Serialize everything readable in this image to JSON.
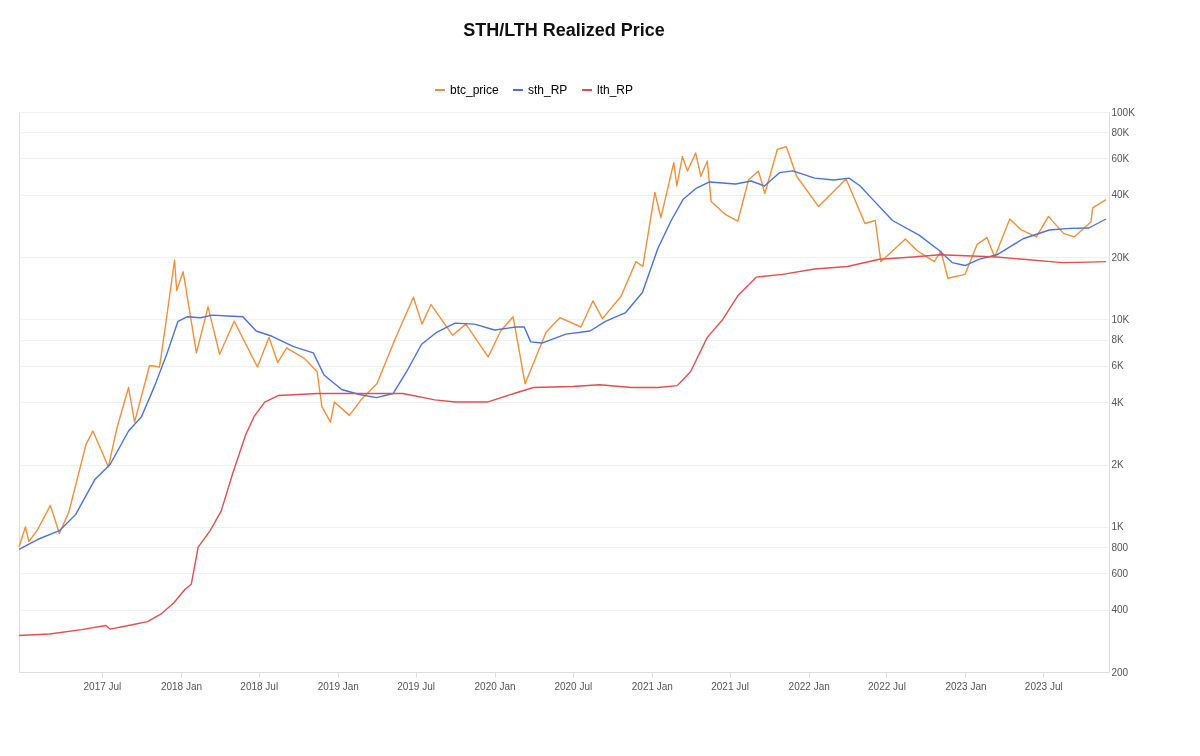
{
  "chart_data": {
    "type": "line",
    "title": "STH/LTH Realized Price",
    "log": "y",
    "grid": "y",
    "legend": "top",
    "marker": "none",
    "line_style": "solid",
    "xlim": [
      "2016-12-20",
      "2023-12-01"
    ],
    "xticks": [
      {
        "value": "2017-07-01",
        "label": "2017 Jul"
      },
      {
        "value": "2018-01-01",
        "label": "2018 Jan"
      },
      {
        "value": "2018-07-01",
        "label": "2018 Jul"
      },
      {
        "value": "2019-01-01",
        "label": "2019 Jan"
      },
      {
        "value": "2019-07-01",
        "label": "2019 Jul"
      },
      {
        "value": "2020-01-01",
        "label": "2020 Jan"
      },
      {
        "value": "2020-07-01",
        "label": "2020 Jul"
      },
      {
        "value": "2021-01-01",
        "label": "2021 Jan"
      },
      {
        "value": "2021-07-01",
        "label": "2021 Jul"
      },
      {
        "value": "2022-01-01",
        "label": "2022 Jan"
      },
      {
        "value": "2022-07-01",
        "label": "2022 Jul"
      },
      {
        "value": "2023-01-01",
        "label": "2023 Jan"
      },
      {
        "value": "2023-07-01",
        "label": "2023 Jul"
      }
    ],
    "ylim": [
      200,
      100000
    ],
    "yticks": [
      200,
      400,
      600,
      800,
      {
        "value": 1000,
        "label": "1K"
      },
      {
        "value": 2000,
        "label": "2K"
      },
      {
        "value": 4000,
        "label": "4K"
      },
      {
        "value": 6000,
        "label": "6K"
      },
      {
        "value": 8000,
        "label": "8K"
      },
      {
        "value": 10000,
        "label": "10K"
      },
      {
        "value": 20000,
        "label": "20K"
      },
      {
        "value": 40000,
        "label": "40K"
      },
      {
        "value": 60000,
        "label": "60K"
      },
      {
        "value": 80000,
        "label": "80K"
      },
      {
        "value": 100000,
        "label": "100K"
      }
    ],
    "series": [
      {
        "name": "btc_price",
        "color": "#f0903c",
        "x": [
          "2016-12-20",
          "2017-01-04",
          "2017-01-12",
          "2017-02-01",
          "2017-03-03",
          "2017-03-24",
          "2017-04-15",
          "2017-05-25",
          "2017-06-10",
          "2017-07-16",
          "2017-08-05",
          "2017-09-01",
          "2017-09-15",
          "2017-10-20",
          "2017-11-12",
          "2017-11-28",
          "2017-12-17",
          "2017-12-22",
          "2018-01-06",
          "2018-02-06",
          "2018-03-05",
          "2018-04-01",
          "2018-05-05",
          "2018-06-28",
          "2018-07-25",
          "2018-08-14",
          "2018-09-04",
          "2018-10-15",
          "2018-11-14",
          "2018-11-25",
          "2018-12-15",
          "2018-12-24",
          "2019-01-28",
          "2019-02-24",
          "2019-04-02",
          "2019-05-14",
          "2019-06-26",
          "2019-07-16",
          "2019-08-06",
          "2019-09-25",
          "2019-10-26",
          "2019-12-17",
          "2020-01-15",
          "2020-02-13",
          "2020-03-12",
          "2020-04-30",
          "2020-06-01",
          "2020-07-20",
          "2020-08-17",
          "2020-09-08",
          "2020-10-21",
          "2020-11-25",
          "2020-12-11",
          "2021-01-08",
          "2021-01-22",
          "2021-02-21",
          "2021-02-28",
          "2021-03-13",
          "2021-03-25",
          "2021-04-13",
          "2021-04-25",
          "2021-05-10",
          "2021-05-19",
          "2021-06-22",
          "2021-07-20",
          "2021-08-14",
          "2021-09-06",
          "2021-09-21",
          "2021-10-20",
          "2021-11-10",
          "2021-12-04",
          "2022-01-24",
          "2022-03-29",
          "2022-05-12",
          "2022-06-05",
          "2022-06-18",
          "2022-08-14",
          "2022-09-10",
          "2022-10-20",
          "2022-11-05",
          "2022-11-21",
          "2022-12-31",
          "2023-01-28",
          "2023-02-20",
          "2023-03-10",
          "2023-04-14",
          "2023-05-11",
          "2023-06-15",
          "2023-07-13",
          "2023-08-17",
          "2023-09-11",
          "2023-10-20",
          "2023-10-24",
          "2023-11-24"
        ],
        "values": [
          800,
          1000,
          850,
          970,
          1270,
          930,
          1180,
          2500,
          2900,
          1950,
          3000,
          4700,
          3200,
          6000,
          5900,
          10000,
          19300,
          13800,
          17000,
          6900,
          11500,
          6800,
          9800,
          5900,
          8200,
          6200,
          7300,
          6500,
          5600,
          3800,
          3200,
          4000,
          3450,
          4100,
          4900,
          8000,
          12800,
          9500,
          11800,
          8400,
          9500,
          6600,
          8800,
          10300,
          4900,
          8700,
          10200,
          9200,
          12300,
          10100,
          12900,
          19000,
          18000,
          41000,
          31000,
          57000,
          44000,
          61000,
          52000,
          63500,
          49000,
          58000,
          37000,
          32000,
          29800,
          47000,
          52000,
          40500,
          66000,
          68000,
          49000,
          35000,
          47500,
          29000,
          30000,
          19000,
          24400,
          21500,
          19000,
          21300,
          15800,
          16500,
          23000,
          24800,
          20000,
          30500,
          27000,
          25000,
          31400,
          26000,
          25000,
          29500,
          34500,
          37800
        ]
      },
      {
        "name": "sth_RP",
        "color": "#4a72d9",
        "x": [
          "2016-12-20",
          "2017-02-01",
          "2017-03-24",
          "2017-05-01",
          "2017-06-15",
          "2017-07-20",
          "2017-09-01",
          "2017-10-01",
          "2017-11-01",
          "2017-12-01",
          "2017-12-25",
          "2018-01-15",
          "2018-02-15",
          "2018-03-15",
          "2018-04-20",
          "2018-05-25",
          "2018-06-25",
          "2018-08-01",
          "2018-09-20",
          "2018-11-05",
          "2018-11-30",
          "2019-01-10",
          "2019-02-20",
          "2019-04-01",
          "2019-05-10",
          "2019-06-10",
          "2019-07-15",
          "2019-08-20",
          "2019-10-01",
          "2019-11-15",
          "2020-01-01",
          "2020-02-20",
          "2020-03-10",
          "2020-03-25",
          "2020-04-20",
          "2020-06-15",
          "2020-08-10",
          "2020-09-15",
          "2020-11-01",
          "2020-12-10",
          "2021-01-15",
          "2021-02-15",
          "2021-03-15",
          "2021-04-15",
          "2021-05-15",
          "2021-06-15",
          "2021-07-15",
          "2021-08-20",
          "2021-09-20",
          "2021-10-25",
          "2021-11-25",
          "2022-01-15",
          "2022-03-01",
          "2022-04-05",
          "2022-05-01",
          "2022-06-01",
          "2022-07-15",
          "2022-09-15",
          "2022-11-01",
          "2022-12-01",
          "2022-12-31",
          "2023-02-01",
          "2023-03-15",
          "2023-05-15",
          "2023-07-15",
          "2023-09-01",
          "2023-10-15",
          "2023-11-24"
        ],
        "values": [
          780,
          870,
          960,
          1150,
          1700,
          2000,
          2900,
          3400,
          4800,
          7000,
          9800,
          10300,
          10200,
          10500,
          10400,
          10300,
          8800,
          8300,
          7400,
          6900,
          5400,
          4600,
          4350,
          4200,
          4400,
          5600,
          7600,
          8700,
          9600,
          9500,
          8900,
          9200,
          9200,
          7800,
          7700,
          8500,
          8800,
          9800,
          10800,
          13500,
          22000,
          30000,
          38000,
          43000,
          46000,
          45500,
          45000,
          46500,
          44000,
          51000,
          52000,
          48000,
          47000,
          48000,
          44000,
          37500,
          30000,
          25500,
          21500,
          18800,
          18200,
          19500,
          20500,
          24500,
          27000,
          27500,
          27600,
          30500
        ]
      },
      {
        "name": "lth_RP",
        "color": "#e0504f",
        "x": [
          "2016-12-20",
          "2017-03-01",
          "2017-05-15",
          "2017-07-10",
          "2017-07-20",
          "2017-09-01",
          "2017-10-15",
          "2017-11-15",
          "2017-12-15",
          "2018-01-10",
          "2018-01-25",
          "2018-02-10",
          "2018-03-10",
          "2018-04-05",
          "2018-05-01",
          "2018-06-01",
          "2018-06-20",
          "2018-07-15",
          "2018-08-15",
          "2018-10-01",
          "2018-11-15",
          "2019-03-01",
          "2019-06-01",
          "2019-08-15",
          "2019-10-01",
          "2019-12-15",
          "2020-02-15",
          "2020-04-01",
          "2020-07-01",
          "2020-09-01",
          "2020-11-15",
          "2021-01-15",
          "2021-03-01",
          "2021-04-01",
          "2021-05-10",
          "2021-06-15",
          "2021-07-20",
          "2021-09-01",
          "2021-11-01",
          "2022-01-15",
          "2022-04-01",
          "2022-06-15",
          "2022-09-01",
          "2022-11-01",
          "2023-01-01",
          "2023-03-15",
          "2023-05-15",
          "2023-08-15",
          "2023-10-15",
          "2023-11-24"
        ],
        "values": [
          300,
          305,
          320,
          335,
          322,
          335,
          350,
          380,
          430,
          500,
          530,
          800,
          960,
          1200,
          1800,
          2800,
          3400,
          4000,
          4300,
          4350,
          4400,
          4400,
          4400,
          4100,
          4000,
          4000,
          4400,
          4700,
          4750,
          4850,
          4700,
          4700,
          4800,
          5600,
          8200,
          10000,
          13000,
          16000,
          16500,
          17500,
          18000,
          19500,
          20000,
          20500,
          20300,
          20000,
          19500,
          18800,
          18900,
          19000
        ]
      }
    ]
  }
}
